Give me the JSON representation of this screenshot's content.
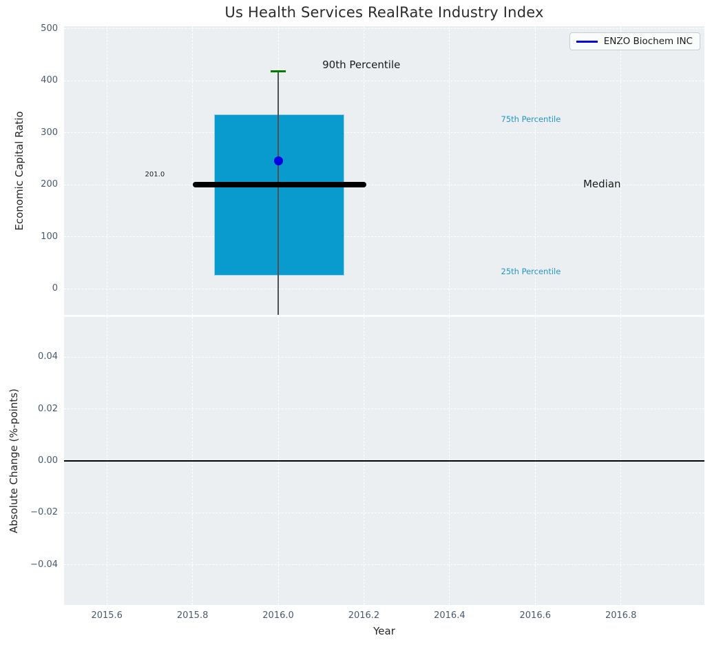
{
  "chart_data": [
    {
      "type": "box",
      "title": "Us Health Services RealRate Industry Index",
      "ylabel": "Economic Capital Ratio",
      "xlim": [
        2015.5,
        2016.995
      ],
      "ylim": [
        -50,
        505
      ],
      "yticks": [
        0,
        100,
        200,
        300,
        400,
        500
      ],
      "ytick_labels": [
        "0",
        "100",
        "200",
        "300",
        "400",
        "500"
      ],
      "xticks": [
        2015.6,
        2015.8,
        2016.0,
        2016.2,
        2016.4,
        2016.6,
        2016.8
      ],
      "show_x_tick_labels": false,
      "grid": "white-dashed",
      "legend": {
        "label": "ENZO Biochem INC",
        "position": "upper-right",
        "line_color": "#0000e6"
      },
      "box": {
        "x_left": 2015.85,
        "x_right": 2016.155,
        "p25": 26,
        "p75": 335,
        "median": 201.0,
        "median_label": "201.0",
        "median_line_x": [
          2015.8,
          2016.205
        ],
        "p90": 418,
        "whisker_x": 2016.0,
        "whisker_low_clipped_at_axis_bottom": true,
        "cap_width_years": 0.034
      },
      "company_point": {
        "name": "ENZO Biochem INC",
        "x": 2016.0,
        "y": 246
      },
      "annotations": [
        {
          "text": "90th Percentile",
          "x": 2016.103,
          "y": 431,
          "size": 15,
          "color": "#1a1a1a",
          "anchor": "left"
        },
        {
          "text": "75th Percentile",
          "x": 2016.52,
          "y": 326,
          "size": 11.5,
          "color": "#2196c8",
          "anchor": "left"
        },
        {
          "text": "Median",
          "x": 2016.712,
          "y": 201,
          "size": 15,
          "color": "#1a1a1a",
          "anchor": "left"
        },
        {
          "text": "25th Percentile",
          "x": 2016.52,
          "y": 33,
          "size": 11.5,
          "color": "#2196c8",
          "anchor": "left"
        },
        {
          "text": "201.0",
          "x": 2015.712,
          "y": 220,
          "size": 10,
          "color": "#1a1a1a",
          "anchor": "center"
        }
      ],
      "colors": {
        "box_fill": "#099ace",
        "median_line": "#000000",
        "p90_cap": "#007d00",
        "whisker": "#4f4f4f",
        "point": "#0000e6"
      }
    },
    {
      "type": "line",
      "ylabel": "Absolute Change (%-points)",
      "xlabel": "Year",
      "xlim": [
        2015.5,
        2016.995
      ],
      "ylim": [
        -0.0555,
        0.0555
      ],
      "yticks": [
        0.04,
        0.02,
        0,
        -0.02,
        -0.04
      ],
      "ytick_labels": [
        "0.04",
        "0.02",
        "0.00",
        "−0.02",
        "−0.04"
      ],
      "xticks": [
        2015.6,
        2015.8,
        2016.0,
        2016.2,
        2016.4,
        2016.6,
        2016.8
      ],
      "xtick_labels": [
        "2015.6",
        "2015.8",
        "2016.0",
        "2016.2",
        "2016.4",
        "2016.6",
        "2016.8"
      ],
      "zero_line": 0,
      "series": []
    }
  ],
  "theme": {
    "figure_bg": "#ffffff",
    "axes_bg": "#eceff1",
    "grid_color": "#ffffff",
    "tick_label_color": "#47586f",
    "title_color": "#2b2b2b",
    "axis_label_color": "#262626",
    "legend_bg": "rgba(255,255,255,0.72)",
    "legend_border": "#c9cdd1"
  }
}
